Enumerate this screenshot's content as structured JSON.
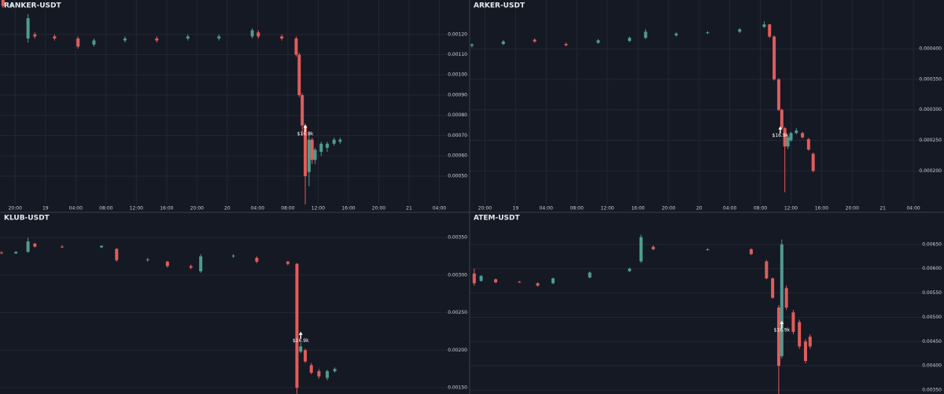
{
  "chart_data": [
    {
      "type": "candlestick",
      "title": "RANKER-USDT",
      "up_color": "#4e9c8f",
      "down_color": "#e05d5a",
      "grid": true,
      "x": [
        -5.6,
        -4.5,
        -2.3,
        -1.4,
        1.2,
        4.3,
        6.4,
        10.5,
        14.7,
        18.8,
        22.9,
        27.3,
        28.1,
        31.2,
        33.1,
        33.5,
        33.9,
        34.3,
        34.8,
        35.2,
        35.6,
        36.4,
        37.2,
        38.1,
        38.9
      ],
      "open": [
        0.00137,
        0.00134,
        0.00118,
        0.0012,
        0.00119,
        0.00118,
        0.00115,
        0.00117,
        0.00118,
        0.00118,
        0.00118,
        0.00119,
        0.00121,
        0.00119,
        0.00118,
        0.0011,
        0.0009,
        0.00075,
        0.00052,
        0.00068,
        0.00058,
        0.00062,
        0.00064,
        0.00066,
        0.00067
      ],
      "high": [
        0.00138,
        0.00136,
        0.0013,
        0.00121,
        0.0012,
        0.00119,
        0.00118,
        0.00119,
        0.00119,
        0.0012,
        0.0012,
        0.00123,
        0.00122,
        0.0012,
        0.00119,
        0.00111,
        0.00091,
        0.00076,
        0.00072,
        0.00069,
        0.00064,
        0.00067,
        0.00067,
        0.00069,
        0.00069
      ],
      "low": [
        0.00133,
        0.00133,
        0.00116,
        0.00118,
        0.00117,
        0.00113,
        0.00114,
        0.00116,
        0.00116,
        0.00117,
        0.00117,
        0.00118,
        0.00118,
        0.00117,
        0.00109,
        0.00089,
        0.0007,
        0.00036,
        0.00045,
        0.00056,
        0.00056,
        0.0006,
        0.00062,
        0.00065,
        0.00066
      ],
      "close": [
        0.00134,
        0.00135,
        0.00128,
        0.00119,
        0.00118,
        0.00114,
        0.00117,
        0.00118,
        0.00117,
        0.00119,
        0.00119,
        0.00122,
        0.00119,
        0.00118,
        0.0011,
        0.0009,
        0.00075,
        0.0005,
        0.00068,
        0.00058,
        0.00063,
        0.00066,
        0.00066,
        0.00068,
        0.00068
      ],
      "xlim": [
        -6,
        56
      ],
      "ylim": [
        0.00036,
        0.00137
      ],
      "yticks": [
        {
          "value": 0.0012,
          "label": "0.00120"
        },
        {
          "value": 0.0011,
          "label": "0.00110"
        },
        {
          "value": 0.001,
          "label": "0.00100"
        },
        {
          "value": 0.0009,
          "label": "0.00090"
        },
        {
          "value": 0.0008,
          "label": "0.00080"
        },
        {
          "value": 0.0007,
          "label": "0.00070"
        },
        {
          "value": 0.0006,
          "label": "0.00060"
        },
        {
          "value": 0.0005,
          "label": "0.00050"
        }
      ],
      "xticks": [
        {
          "value": -4,
          "label": "20:00"
        },
        {
          "value": 0,
          "label": "19"
        },
        {
          "value": 4,
          "label": "04:00"
        },
        {
          "value": 8,
          "label": "08:00"
        },
        {
          "value": 12,
          "label": "12:00"
        },
        {
          "value": 16,
          "label": "16:00"
        },
        {
          "value": 20,
          "label": "20:00"
        },
        {
          "value": 24,
          "label": "20"
        },
        {
          "value": 28,
          "label": "04:00"
        },
        {
          "value": 32,
          "label": "08:00"
        },
        {
          "value": 36,
          "label": "12:00"
        },
        {
          "value": 40,
          "label": "16:00"
        },
        {
          "value": 44,
          "label": "20:00"
        },
        {
          "value": 48,
          "label": "21"
        },
        {
          "value": 52,
          "label": "04:00"
        }
      ],
      "annotation": {
        "text": "$16.9k",
        "x": 34.3,
        "y": 0.0007
      }
    },
    {
      "type": "candlestick",
      "title": "ARKER-USDT",
      "up_color": "#4e9c8f",
      "down_color": "#e05d5a",
      "grid": true,
      "x": [
        -5.7,
        -1.6,
        2.5,
        6.6,
        10.8,
        14.9,
        17.0,
        21.0,
        25.1,
        29.3,
        32.5,
        33.2,
        33.8,
        34.4,
        34.8,
        35.2,
        35.6,
        36.0,
        36.7,
        37.5,
        38.3,
        38.9
      ],
      "open": [
        0.000405,
        0.000408,
        0.000415,
        0.000408,
        0.00041,
        0.000413,
        0.000418,
        0.000422,
        0.000426,
        0.000428,
        0.000436,
        0.00044,
        0.00042,
        0.00035,
        0.0003,
        0.00027,
        0.00024,
        0.00025,
        0.000262,
        0.000262,
        0.000252,
        0.000228
      ],
      "high": [
        0.000409,
        0.000414,
        0.000417,
        0.00041,
        0.000416,
        0.00042,
        0.000432,
        0.000427,
        0.000429,
        0.000434,
        0.000445,
        0.000441,
        0.000422,
        0.000352,
        0.000302,
        0.000272,
        0.000258,
        0.000264,
        0.00027,
        0.000264,
        0.000254,
        0.00023
      ],
      "low": [
        0.000402,
        0.000406,
        0.00041,
        0.000404,
        0.000408,
        0.000411,
        0.000416,
        0.00042,
        0.000424,
        0.000426,
        0.000434,
        0.000418,
        0.000348,
        0.000298,
        0.000268,
        0.000165,
        0.000236,
        0.000248,
        0.00026,
        0.000253,
        0.000233,
        0.000198
      ],
      "close": [
        0.000407,
        0.000412,
        0.000412,
        0.000406,
        0.000414,
        0.000418,
        0.000428,
        0.000425,
        0.000427,
        0.000432,
        0.00044,
        0.00042,
        0.00035,
        0.0003,
        0.00027,
        0.00024,
        0.000255,
        0.000262,
        0.000266,
        0.000255,
        0.000235,
        0.0002
      ],
      "xlim": [
        -6,
        56
      ],
      "ylim": [
        0.000145,
        0.00048
      ],
      "yticks": [
        {
          "value": 0.0004,
          "label": "0.000400"
        },
        {
          "value": 0.00035,
          "label": "0.000350"
        },
        {
          "value": 0.0003,
          "label": "0.000300"
        },
        {
          "value": 0.00025,
          "label": "0.000250"
        },
        {
          "value": 0.0002,
          "label": "0.000200"
        }
      ],
      "xticks": [
        {
          "value": -4,
          "label": "20:00"
        },
        {
          "value": 0,
          "label": "19"
        },
        {
          "value": 4,
          "label": "04:00"
        },
        {
          "value": 8,
          "label": "08:00"
        },
        {
          "value": 12,
          "label": "12:00"
        },
        {
          "value": 16,
          "label": "16:00"
        },
        {
          "value": 20,
          "label": "20:00"
        },
        {
          "value": 24,
          "label": "20"
        },
        {
          "value": 28,
          "label": "04:00"
        },
        {
          "value": 32,
          "label": "08:00"
        },
        {
          "value": 36,
          "label": "12:00"
        },
        {
          "value": 40,
          "label": "16:00"
        },
        {
          "value": 44,
          "label": "20:00"
        },
        {
          "value": 48,
          "label": "21"
        },
        {
          "value": 52,
          "label": "04:00"
        }
      ],
      "annotation": {
        "text": "$16.9k",
        "x": 34.6,
        "y": 0.000255
      }
    },
    {
      "type": "candlestick",
      "title": "KLUB-USDT",
      "up_color": "#4e9c8f",
      "down_color": "#e05d5a",
      "grid": true,
      "x": [
        -5.8,
        -3.9,
        -2.3,
        -1.4,
        2.2,
        7.4,
        9.4,
        13.5,
        16.1,
        19.2,
        20.5,
        24.8,
        27.9,
        32.0,
        33.2,
        33.7,
        34.3,
        35.1,
        36.1,
        37.2,
        38.2
      ],
      "open": [
        0.0033,
        0.00329,
        0.00331,
        0.00342,
        0.00338,
        0.00337,
        0.00335,
        0.0032,
        0.00318,
        0.00312,
        0.00305,
        0.00325,
        0.00323,
        0.00318,
        0.00315,
        0.00198,
        0.002,
        0.0018,
        0.00172,
        0.00163,
        0.00172
      ],
      "high": [
        0.00332,
        0.00332,
        0.0035,
        0.00343,
        0.0034,
        0.0034,
        0.00336,
        0.00323,
        0.00319,
        0.00314,
        0.00328,
        0.00328,
        0.00325,
        0.00319,
        0.00316,
        0.0021,
        0.00202,
        0.00183,
        0.00175,
        0.00174,
        0.00177
      ],
      "low": [
        0.00328,
        0.00328,
        0.0033,
        0.00337,
        0.00336,
        0.00336,
        0.00318,
        0.00318,
        0.0031,
        0.00308,
        0.00303,
        0.00323,
        0.00316,
        0.00313,
        0.00142,
        0.00196,
        0.00183,
        0.00168,
        0.00162,
        0.0016,
        0.0017
      ],
      "close": [
        0.00329,
        0.00331,
        0.00345,
        0.00338,
        0.00337,
        0.00339,
        0.0032,
        0.00321,
        0.00312,
        0.0031,
        0.00325,
        0.00326,
        0.00318,
        0.00315,
        0.0015,
        0.00205,
        0.00185,
        0.0017,
        0.00165,
        0.00172,
        0.00175
      ],
      "xlim": [
        -6,
        56
      ],
      "ylim": [
        0.001416,
        0.003837
      ],
      "yticks": [
        {
          "value": 0.0035,
          "label": "0.00350"
        },
        {
          "value": 0.003,
          "label": "0.00300"
        },
        {
          "value": 0.0025,
          "label": "0.00250"
        },
        {
          "value": 0.002,
          "label": "0.00200"
        },
        {
          "value": 0.0015,
          "label": "0.00150"
        }
      ],
      "annotation": {
        "text": "$16.9k",
        "x": 33.7,
        "y": 0.0021
      }
    },
    {
      "type": "candlestick",
      "title": "ATEM-USDT",
      "up_color": "#4e9c8f",
      "down_color": "#e05d5a",
      "grid": true,
      "x": [
        -5.4,
        -4.5,
        -2.6,
        0.5,
        2.9,
        4.9,
        9.7,
        14.9,
        16.4,
        18.0,
        25.1,
        30.8,
        32.8,
        33.6,
        34.4,
        34.8,
        35.4,
        36.3,
        37.1,
        37.9,
        38.5
      ],
      "open": [
        0.0059,
        0.00575,
        0.00578,
        0.00573,
        0.0057,
        0.0057,
        0.00582,
        0.00595,
        0.00615,
        0.00645,
        0.0064,
        0.0064,
        0.00615,
        0.0058,
        0.0052,
        0.0042,
        0.0056,
        0.0051,
        0.0049,
        0.0045,
        0.0046
      ],
      "high": [
        0.006,
        0.00587,
        0.0058,
        0.00575,
        0.00572,
        0.00582,
        0.00594,
        0.00602,
        0.0067,
        0.00648,
        0.00642,
        0.00642,
        0.00618,
        0.00582,
        0.00525,
        0.0066,
        0.00565,
        0.00515,
        0.00495,
        0.00455,
        0.00465
      ],
      "low": [
        0.00565,
        0.00573,
        0.0057,
        0.00571,
        0.00563,
        0.00568,
        0.0058,
        0.00593,
        0.00612,
        0.00638,
        0.00637,
        0.00628,
        0.00578,
        0.00538,
        0.0034,
        0.00415,
        0.00515,
        0.00465,
        0.00435,
        0.00405,
        0.00435
      ],
      "close": [
        0.0057,
        0.00585,
        0.00572,
        0.00572,
        0.00565,
        0.0058,
        0.00592,
        0.006,
        0.00665,
        0.0064,
        0.00639,
        0.0063,
        0.0058,
        0.0054,
        0.004,
        0.0065,
        0.0052,
        0.0047,
        0.0044,
        0.0041,
        0.0044
      ],
      "xlim": [
        -6,
        56
      ],
      "ylim": [
        0.00342,
        0.00716
      ],
      "yticks": [
        {
          "value": 0.0065,
          "label": "0.00650"
        },
        {
          "value": 0.006,
          "label": "0.00600"
        },
        {
          "value": 0.0055,
          "label": "0.00550"
        },
        {
          "value": 0.005,
          "label": "0.00500"
        },
        {
          "value": 0.0045,
          "label": "0.00450"
        },
        {
          "value": 0.004,
          "label": "0.00400"
        },
        {
          "value": 0.0035,
          "label": "0.00350"
        }
      ],
      "annotation": {
        "text": "$16.9k",
        "x": 34.8,
        "y": 0.0047
      }
    }
  ]
}
